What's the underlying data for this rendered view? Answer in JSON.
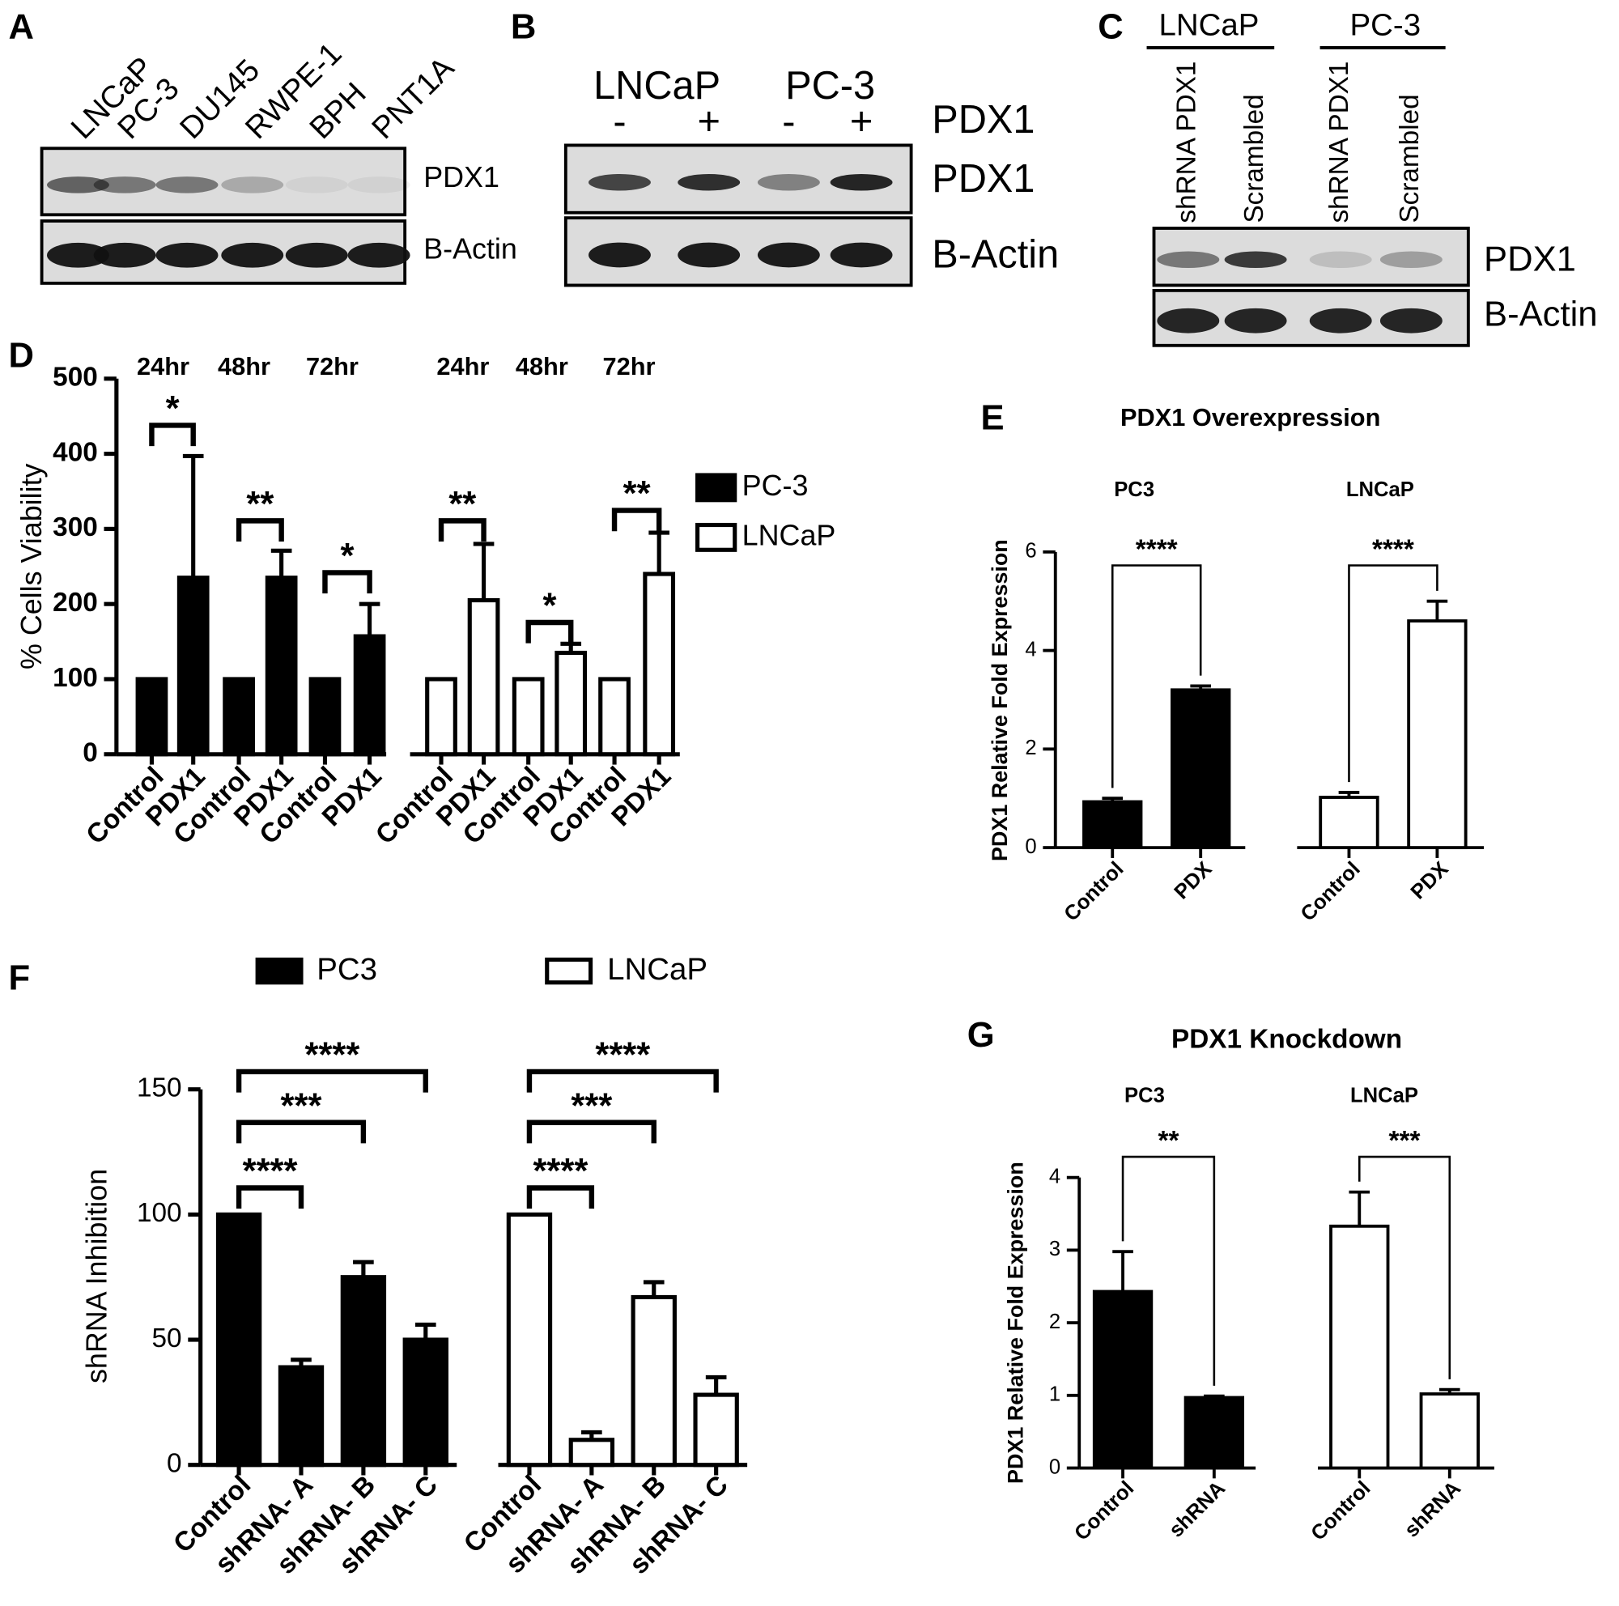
{
  "blots": [
    {
      "panel": "A",
      "lanes": [
        "LNCaP",
        "PC-3",
        "DU145",
        "RWPE-1",
        "BPH",
        "PNT1A"
      ],
      "rows": [
        "PDX1",
        "B-Actin"
      ]
    },
    {
      "panel": "B",
      "groups": [
        "LNCaP",
        "PC-3"
      ],
      "lanes": [
        "-",
        "+",
        "-",
        "+"
      ],
      "lane_title": "PDX1",
      "rows": [
        "PDX1",
        "B-Actin"
      ]
    },
    {
      "panel": "C",
      "groups": [
        "LNCaP",
        "PC-3"
      ],
      "lanes": [
        "shRNA PDX1",
        "Scrambled",
        "shRNA PDX1",
        "Scrambled"
      ],
      "rows": [
        "PDX1",
        "B-Actin"
      ]
    }
  ],
  "chart_data": [
    {
      "panel": "D",
      "type": "bar",
      "ylabel": "% Cells Viability",
      "groups": [
        "24hr",
        "48hr",
        "72hr",
        "24hr",
        "48hr",
        "72hr"
      ],
      "categories": [
        "Control",
        "PDX1",
        "Control",
        "PDX1",
        "Control",
        "PDX1",
        "Control",
        "PDX1",
        "Control",
        "PDX1",
        "Control",
        "PDX1"
      ],
      "series": [
        {
          "name": "PC-3",
          "color": "#000000",
          "values": [
            100,
            235,
            100,
            235,
            100,
            157,
            null,
            null,
            null,
            null,
            null,
            null
          ],
          "errors": [
            null,
            162,
            null,
            36,
            null,
            43,
            null,
            null,
            null,
            null,
            null,
            null
          ]
        },
        {
          "name": "LNCaP",
          "color": "#ffffff",
          "values": [
            null,
            null,
            null,
            null,
            null,
            null,
            100,
            205,
            100,
            135,
            100,
            240
          ],
          "errors": [
            null,
            null,
            null,
            null,
            null,
            null,
            null,
            75,
            null,
            12,
            null,
            55
          ]
        }
      ],
      "ylim": [
        0,
        500
      ],
      "yticks": [
        0,
        100,
        200,
        300,
        400,
        500
      ],
      "annotations": [
        "*",
        "**",
        "*",
        "**",
        "*",
        "**"
      ]
    },
    {
      "panel": "E",
      "type": "bar",
      "title": "PDX1 Overexpression",
      "ylabel": "PDX1 Relative Fold Expression",
      "groups": [
        "PC3",
        "LNCaP"
      ],
      "categories": [
        "Control",
        "PDX",
        "Control",
        "PDX"
      ],
      "series": [
        {
          "color": "#000000",
          "values": [
            0.93,
            3.2,
            null,
            null
          ],
          "errors": [
            0.07,
            0.08,
            null,
            null
          ]
        },
        {
          "color": "#ffffff",
          "values": [
            null,
            null,
            1.02,
            4.6
          ],
          "errors": [
            null,
            null,
            0.1,
            0.4
          ]
        }
      ],
      "ylim": [
        0,
        6
      ],
      "yticks": [
        0,
        2,
        4,
        6
      ],
      "annotations": [
        "****",
        "****"
      ]
    },
    {
      "panel": "F",
      "type": "bar",
      "ylabel": "shRNA Inhibition",
      "categories": [
        "Control",
        "shRNA- A",
        "shRNA- B",
        "shRNA- C",
        "Control",
        "shRNA- A",
        "shRNA- B",
        "shRNA- C"
      ],
      "series": [
        {
          "name": "PC3",
          "color": "#000000",
          "values": [
            100,
            39,
            75,
            50,
            null,
            null,
            null,
            null
          ],
          "errors": [
            null,
            3,
            6,
            6,
            null,
            null,
            null,
            null
          ]
        },
        {
          "name": "LNCaP",
          "color": "#ffffff",
          "values": [
            null,
            null,
            null,
            null,
            100,
            10,
            67,
            28
          ],
          "errors": [
            null,
            null,
            null,
            null,
            null,
            3,
            6,
            7
          ]
        }
      ],
      "ylim": [
        0,
        150
      ],
      "yticks": [
        0,
        50,
        100,
        150
      ],
      "annotations": [
        "****",
        "***",
        "****",
        "****",
        "***",
        "****"
      ]
    },
    {
      "panel": "G",
      "type": "bar",
      "title": "PDX1 Knockdown",
      "ylabel": "PDX1 Relative Fold Expression",
      "groups": [
        "PC3",
        "LNCaP"
      ],
      "categories": [
        "Control",
        "shRNA",
        "Control",
        "shRNA"
      ],
      "series": [
        {
          "color": "#000000",
          "values": [
            2.43,
            0.97,
            null,
            null
          ],
          "errors": [
            0.55,
            0.02,
            null,
            null
          ]
        },
        {
          "color": "#ffffff",
          "values": [
            null,
            null,
            3.33,
            1.02
          ],
          "errors": [
            null,
            null,
            0.47,
            0.06
          ]
        }
      ],
      "ylim": [
        0,
        4
      ],
      "yticks": [
        0,
        1,
        2,
        3,
        4
      ],
      "annotations": [
        "**",
        "***"
      ]
    }
  ]
}
